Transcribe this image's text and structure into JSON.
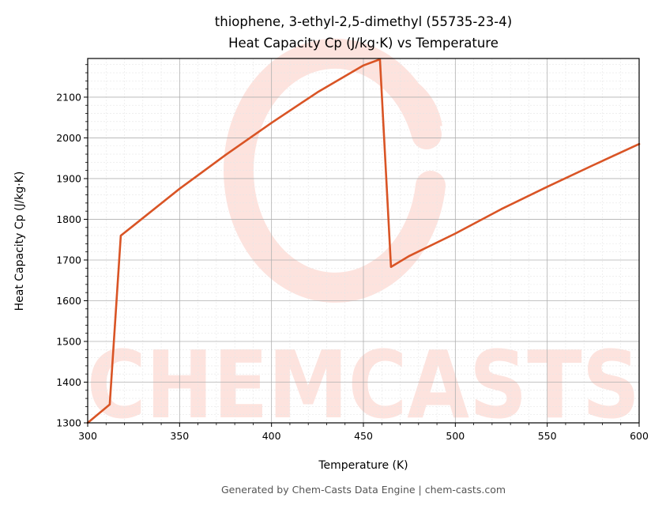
{
  "chart_data": {
    "type": "line",
    "title": "thiophene, 3-ethyl-2,5-dimethyl (55735-23-4)",
    "subtitle": "Heat Capacity Cp (J/kg·K) vs Temperature",
    "xlabel": "Temperature (K)",
    "ylabel": "Heat Capacity Cp (J/kg·K)",
    "xlim": [
      300,
      600
    ],
    "ylim": [
      1300,
      2195
    ],
    "xticks": [
      300,
      350,
      400,
      450,
      500,
      550,
      600
    ],
    "yticks": [
      1300,
      1400,
      1500,
      1600,
      1700,
      1800,
      1900,
      2000,
      2100
    ],
    "grid": true,
    "legend": "none",
    "series": [
      {
        "color": "#d95425",
        "x": [
          300,
          312,
          318,
          325,
          350,
          375,
          400,
          425,
          450,
          459,
          465,
          475,
          500,
          525,
          550,
          575,
          600
        ],
        "y": [
          1300,
          1345,
          1760,
          1785,
          1875,
          1958,
          2037,
          2112,
          2178,
          2193,
          1683,
          1710,
          1765,
          1825,
          1880,
          1933,
          1985
        ]
      }
    ]
  },
  "watermark": {
    "text": "CHEMCASTS",
    "color": "#fde3de"
  },
  "footer": {
    "text": "Generated by Chem-Casts Data Engine | chem-casts.com"
  }
}
